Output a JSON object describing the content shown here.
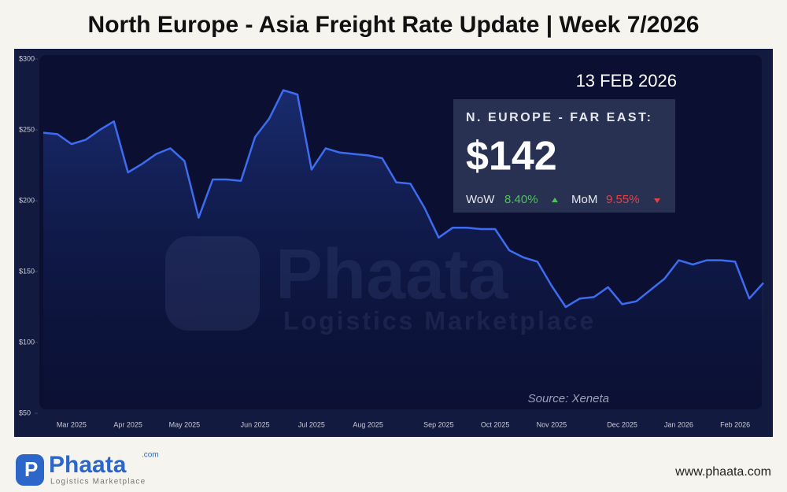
{
  "title": "North Europe - Asia Freight Rate Update | Week 7/2026",
  "chart_data": {
    "type": "line",
    "categories": [
      null,
      null,
      "Mar 2025",
      null,
      null,
      null,
      "Apr 2025",
      null,
      null,
      null,
      "May 2025",
      null,
      null,
      null,
      null,
      "Jun 2025",
      null,
      null,
      null,
      "Jul 2025",
      null,
      null,
      null,
      "Aug 2025",
      null,
      null,
      null,
      null,
      "Sep 2025",
      null,
      null,
      null,
      "Oct 2025",
      null,
      null,
      null,
      "Nov 2025",
      null,
      null,
      null,
      null,
      "Dec 2025",
      null,
      null,
      null,
      "Jan 2026",
      null,
      null,
      null,
      "Feb 2026",
      null,
      null
    ],
    "series": [
      {
        "name": "N. EUROPE - FAR EAST",
        "color": "#3d6cf0",
        "values": [
          248,
          247,
          240,
          243,
          250,
          256,
          220,
          226,
          233,
          237,
          228,
          188,
          215,
          215,
          214,
          245,
          258,
          278,
          275,
          222,
          237,
          234,
          233,
          232,
          230,
          213,
          212,
          195,
          174,
          181,
          181,
          180,
          180,
          165,
          160,
          157,
          140,
          125,
          131,
          132,
          139,
          127,
          129,
          137,
          145,
          158,
          155,
          158,
          158,
          157,
          131,
          142
        ]
      }
    ],
    "ylim": [
      50,
      300
    ],
    "yticks": [
      {
        "value": 50,
        "label": "$50"
      },
      {
        "value": 100,
        "label": "$100"
      },
      {
        "value": 150,
        "label": "$150"
      },
      {
        "value": 200,
        "label": "$200"
      },
      {
        "value": 250,
        "label": "$250"
      },
      {
        "value": 300,
        "label": "$300"
      }
    ],
    "annotations": {
      "date": "13 FEB 2026",
      "route": "N. EUROPE - FAR EAST:",
      "price": "$142",
      "wow_label": "WoW",
      "wow": "8.40%",
      "mom_label": "MoM",
      "mom": "9.55%",
      "source": "Source: Xeneta"
    }
  },
  "brand": {
    "name": "Phaata",
    "domain": ".com",
    "tagline": "Logistics Marketplace",
    "url": "www.phaata.com"
  }
}
